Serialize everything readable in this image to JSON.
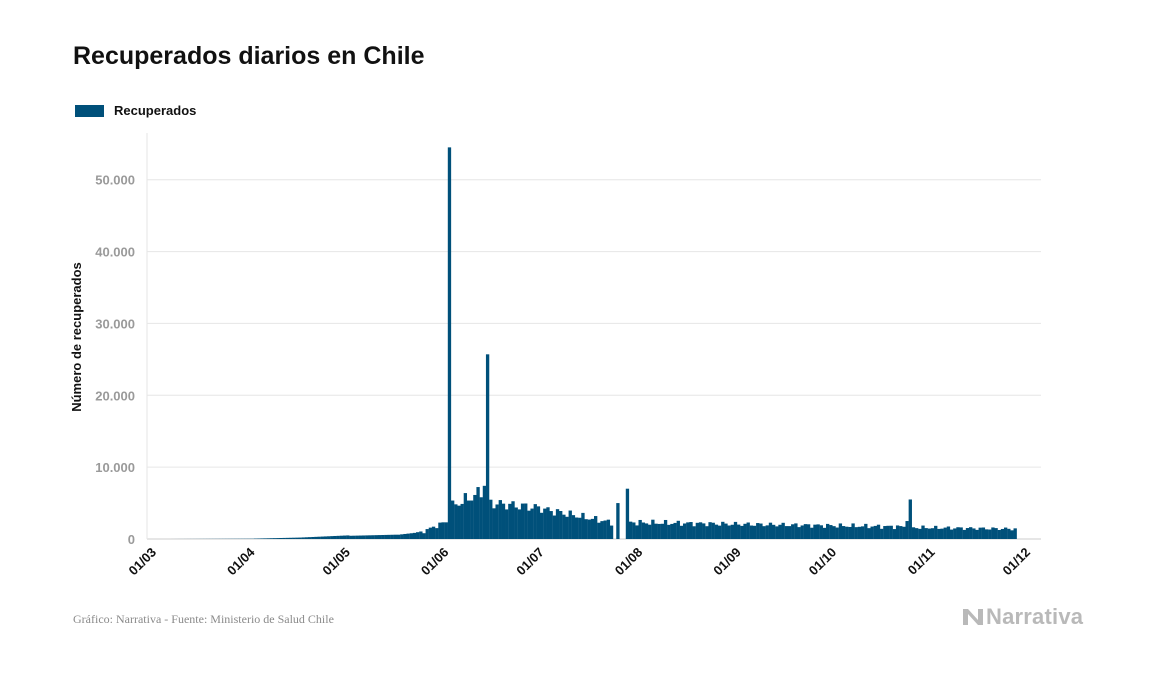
{
  "colors": {
    "bar": "#00507a",
    "grid": "#e6e6e6",
    "axis": "#cccccc"
  },
  "chart_data": {
    "type": "bar",
    "title": "Recuperados diarios en Chile",
    "ylabel": "Número de recuperados",
    "xlabel": "",
    "series_name": "Recuperados",
    "ylim": [
      0,
      56500
    ],
    "yticks": [
      0,
      10000,
      20000,
      30000,
      40000,
      50000
    ],
    "ytick_labels": [
      "0",
      "10.000",
      "20.000",
      "30.000",
      "40.000",
      "50.000"
    ],
    "xticks": [
      "01/03",
      "01/04",
      "01/05",
      "01/06",
      "01/07",
      "01/08",
      "01/09",
      "01/10",
      "01/11",
      "01/12"
    ],
    "grid": true,
    "legend": "top-left",
    "start_date": "2020-03-01",
    "x_end_date": "2020-12-01",
    "daily": [
      {
        "from": "2020-03-01",
        "to": "2020-03-05",
        "start": 0,
        "end": 0
      },
      {
        "from": "2020-03-06",
        "to": "2020-03-31",
        "start": 2,
        "end": 40
      },
      {
        "from": "2020-04-01",
        "to": "2020-04-15",
        "start": 60,
        "end": 200
      },
      {
        "from": "2020-04-16",
        "to": "2020-04-30",
        "start": 220,
        "end": 500
      },
      {
        "from": "2020-05-01",
        "to": "2020-05-15",
        "start": 450,
        "end": 600
      },
      {
        "from": "2020-05-16",
        "to": "2020-05-24",
        "start": 600,
        "end": 1000
      },
      {
        "from": "2020-05-25",
        "to": "2020-05-31",
        "start": 1300,
        "end": 2400
      },
      {
        "from": "2020-06-01",
        "to": "2020-06-01",
        "start": 54500,
        "end": 54500
      },
      {
        "from": "2020-06-02",
        "to": "2020-06-11",
        "start": 4600,
        "end": 6500
      },
      {
        "from": "2020-06-12",
        "to": "2020-06-12",
        "start": 7400,
        "end": 7400
      },
      {
        "from": "2020-06-13",
        "to": "2020-06-13",
        "start": 25700,
        "end": 25700
      },
      {
        "from": "2020-06-14",
        "to": "2020-06-30",
        "start": 5000,
        "end": 4300
      },
      {
        "from": "2020-07-01",
        "to": "2020-07-22",
        "start": 4100,
        "end": 2300
      },
      {
        "from": "2020-07-23",
        "to": "2020-07-23",
        "start": 0,
        "end": 0
      },
      {
        "from": "2020-07-24",
        "to": "2020-07-24",
        "start": 5000,
        "end": 5000
      },
      {
        "from": "2020-07-25",
        "to": "2020-07-26",
        "start": 0,
        "end": 0
      },
      {
        "from": "2020-07-27",
        "to": "2020-07-27",
        "start": 7000,
        "end": 7000
      },
      {
        "from": "2020-07-28",
        "to": "2020-10-22",
        "start": 2300,
        "end": 1700
      },
      {
        "from": "2020-10-23",
        "to": "2020-10-23",
        "start": 2500,
        "end": 2500
      },
      {
        "from": "2020-10-24",
        "to": "2020-10-24",
        "start": 5500,
        "end": 5500
      },
      {
        "from": "2020-10-25",
        "to": "2020-11-26",
        "start": 1600,
        "end": 1400
      }
    ]
  },
  "footer": {
    "source": "Gráfico: Narrativa - Fuente: Ministerio de Salud Chile",
    "brand": "Narrativa"
  }
}
